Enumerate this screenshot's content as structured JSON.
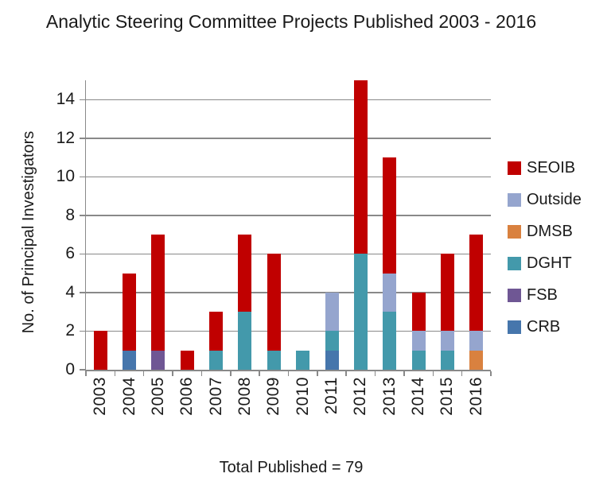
{
  "title": "Analytic Steering Committee Projects Published 2003 - 2016",
  "caption": "Total Published = 79",
  "colors": {
    "axis": "#898989",
    "gridline": "#898989",
    "text": "#000000"
  },
  "chart_data": {
    "type": "bar",
    "stacked": true,
    "title": "Analytic Steering Committee Projects Published 2003 - 2016",
    "subtitle": "Total Published = 79",
    "categories": [
      "2003",
      "2004",
      "2005",
      "2006",
      "2007",
      "2008",
      "2009",
      "2010",
      "2011",
      "2012",
      "2013",
      "2014",
      "2015",
      "2016"
    ],
    "series": [
      {
        "name": "CRB",
        "color": "#4676AC",
        "values": [
          0,
          1,
          0,
          0,
          0,
          0,
          0,
          0,
          1,
          0,
          0,
          0,
          0,
          0
        ]
      },
      {
        "name": "FSB",
        "color": "#6F5794",
        "values": [
          0,
          0,
          1,
          0,
          0,
          0,
          0,
          0,
          0,
          0,
          0,
          0,
          0,
          0
        ]
      },
      {
        "name": "DGHT",
        "color": "#4399AB",
        "values": [
          0,
          0,
          0,
          0,
          1,
          3,
          1,
          1,
          1,
          6,
          3,
          1,
          1,
          0
        ]
      },
      {
        "name": "DMSB",
        "color": "#D9813F",
        "values": [
          0,
          0,
          0,
          0,
          0,
          0,
          0,
          0,
          0,
          0,
          0,
          0,
          0,
          1
        ]
      },
      {
        "name": "Outside",
        "color": "#95A5CE",
        "values": [
          0,
          0,
          0,
          0,
          0,
          0,
          0,
          0,
          2,
          0,
          2,
          1,
          1,
          1
        ]
      },
      {
        "name": "SEOIB",
        "color": "#C00000",
        "values": [
          2,
          4,
          6,
          1,
          2,
          4,
          5,
          0,
          0,
          9,
          6,
          2,
          4,
          5
        ]
      }
    ],
    "totals_per_year": [
      2,
      5,
      7,
      1,
      3,
      7,
      6,
      1,
      4,
      15,
      11,
      4,
      6,
      7
    ],
    "total": 79,
    "legend": [
      "SEOIB",
      "Outside",
      "DMSB",
      "DGHT",
      "FSB",
      "CRB"
    ],
    "legend_position": "right",
    "xlabel": "",
    "ylabel": "No. of Principal Investigators",
    "ylim": [
      0,
      15
    ],
    "yticks": [
      0,
      2,
      4,
      6,
      8,
      10,
      12,
      14
    ],
    "grid": true
  }
}
